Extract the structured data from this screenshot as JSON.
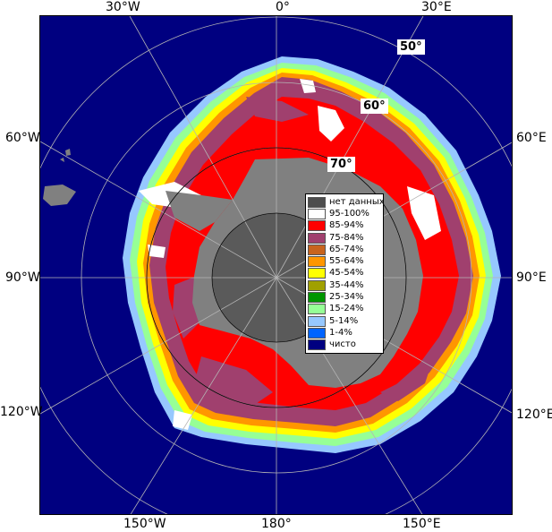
{
  "map": {
    "longitude_labels": {
      "top": [
        "30°W",
        "0°",
        "30°E"
      ],
      "left": [
        "60°W",
        "90°W",
        "120°W"
      ],
      "right": [
        "60°E",
        "90°E",
        "120°E"
      ],
      "bottom": [
        "150°W",
        "180°",
        "150°E"
      ]
    },
    "latitude_labels": [
      "50°",
      "60°",
      "70°"
    ],
    "colors": {
      "ocean": "#000080",
      "land": "#808080",
      "no_data": "#5a5a5a"
    }
  },
  "legend": {
    "items": [
      {
        "label": "нет данных",
        "color": "#4d4d4d"
      },
      {
        "label": "95-100%",
        "color": "#ffffff"
      },
      {
        "label": "85-94%",
        "color": "#ff0000"
      },
      {
        "label": "75-84%",
        "color": "#a0406e"
      },
      {
        "label": "65-74%",
        "color": "#c8641e"
      },
      {
        "label": "55-64%",
        "color": "#ff9600"
      },
      {
        "label": "45-54%",
        "color": "#ffff00"
      },
      {
        "label": "35-44%",
        "color": "#a0a000"
      },
      {
        "label": "25-34%",
        "color": "#009600"
      },
      {
        "label": "15-24%",
        "color": "#96ff96"
      },
      {
        "label": "5-14%",
        "color": "#96c8ff"
      },
      {
        "label": "1-4%",
        "color": "#0064ff"
      },
      {
        "label": "чисто",
        "color": "#000080"
      }
    ]
  }
}
